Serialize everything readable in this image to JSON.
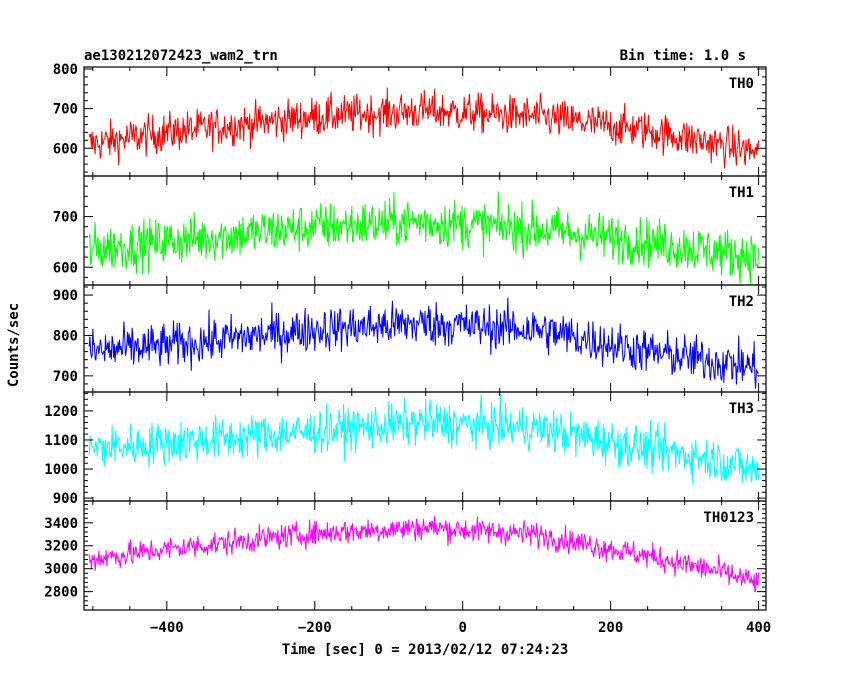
{
  "header": {
    "title": "ae130212072423_wam2_trn",
    "bin_time": "Bin time: 1.0 s"
  },
  "chart_data": {
    "type": "line",
    "xlabel": "Time [sec] 0 = 2013/02/12 07:24:23",
    "ylabel": "Counts/sec",
    "xlim": [
      -512,
      410
    ],
    "x_ticks": [
      -400,
      -200,
      0,
      200,
      400
    ],
    "x_tick_labels": [
      "−400",
      "−200",
      "0",
      "200",
      "400"
    ],
    "x_start": -505,
    "x_end": 400,
    "bin_time": 1.0,
    "panels": [
      {
        "name": "TH0",
        "color": "#ff0000",
        "ylim": [
          530,
          805
        ],
        "yticks": [
          600,
          700,
          800
        ],
        "trend": {
          "x": [
            -505,
            -400,
            -200,
            -50,
            100,
            250,
            400
          ],
          "y": [
            610,
            640,
            680,
            695,
            680,
            645,
            590
          ]
        },
        "noise": 25
      },
      {
        "name": "TH1",
        "color": "#00ff00",
        "ylim": [
          565,
          780
        ],
        "yticks": [
          600,
          700
        ],
        "trend": {
          "x": [
            -505,
            -400,
            -200,
            -50,
            100,
            250,
            400
          ],
          "y": [
            635,
            650,
            680,
            690,
            675,
            650,
            620
          ]
        },
        "noise": 24
      },
      {
        "name": "TH2",
        "color": "#0000ff",
        "ylim": [
          660,
          925
        ],
        "yticks": [
          700,
          800,
          900
        ],
        "trend": {
          "x": [
            -505,
            -400,
            -200,
            -50,
            100,
            250,
            400
          ],
          "y": [
            760,
            775,
            815,
            830,
            815,
            760,
            720
          ]
        },
        "noise": 28
      },
      {
        "name": "TH3",
        "color": "#00ffff",
        "ylim": [
          890,
          1265
        ],
        "yticks": [
          900,
          1000,
          1100,
          1200
        ],
        "trend": {
          "x": [
            -505,
            -400,
            -200,
            -50,
            100,
            250,
            350,
            400
          ],
          "y": [
            1070,
            1090,
            1130,
            1160,
            1140,
            1070,
            1030,
            990
          ]
        },
        "noise": 38
      },
      {
        "name": "TH0123",
        "color": "#ff00ff",
        "ylim": [
          2640,
          3590
        ],
        "yticks": [
          2800,
          3000,
          3200,
          3400
        ],
        "trend": {
          "x": [
            -505,
            -400,
            -200,
            -50,
            100,
            250,
            350,
            400
          ],
          "y": [
            3080,
            3170,
            3310,
            3360,
            3300,
            3110,
            2970,
            2870
          ]
        },
        "noise": 55
      }
    ]
  }
}
